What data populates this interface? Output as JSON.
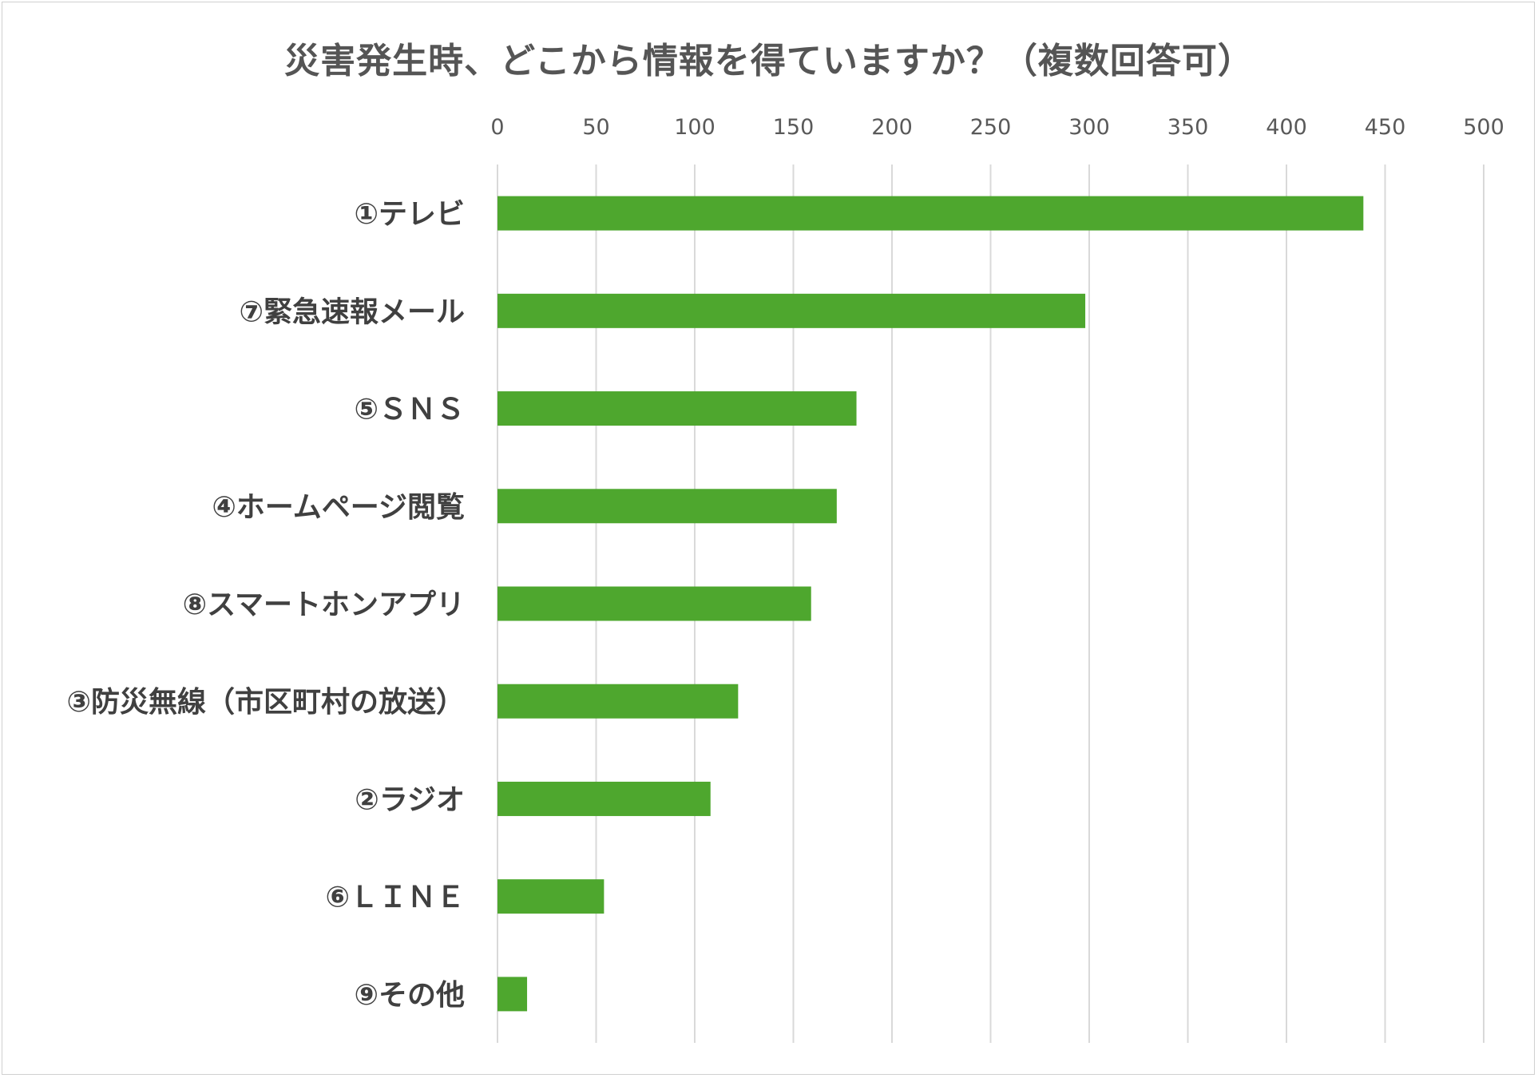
{
  "chart_data": {
    "type": "bar",
    "orientation": "horizontal",
    "title": "災害発生時、どこから情報を得ていますか？（複数回答可）",
    "categories": [
      "①テレビ",
      "⑦緊急速報メール",
      "⑤ＳＮＳ",
      "④ホームページ閲覧",
      "⑧スマートホンアプリ",
      "③防災無線（市区町村の放送）",
      "②ラジオ",
      "⑥ＬＩＮＥ",
      "⑨その他"
    ],
    "values": [
      439,
      298,
      182,
      172,
      159,
      122,
      108,
      54,
      15
    ],
    "xlim": [
      0,
      500
    ],
    "x_ticks": [
      "0",
      "50",
      "100",
      "150",
      "200",
      "250",
      "300",
      "350",
      "400",
      "450",
      "500"
    ],
    "x_axis_position": "top",
    "grid": true,
    "bar_color": "#4ea72e"
  }
}
